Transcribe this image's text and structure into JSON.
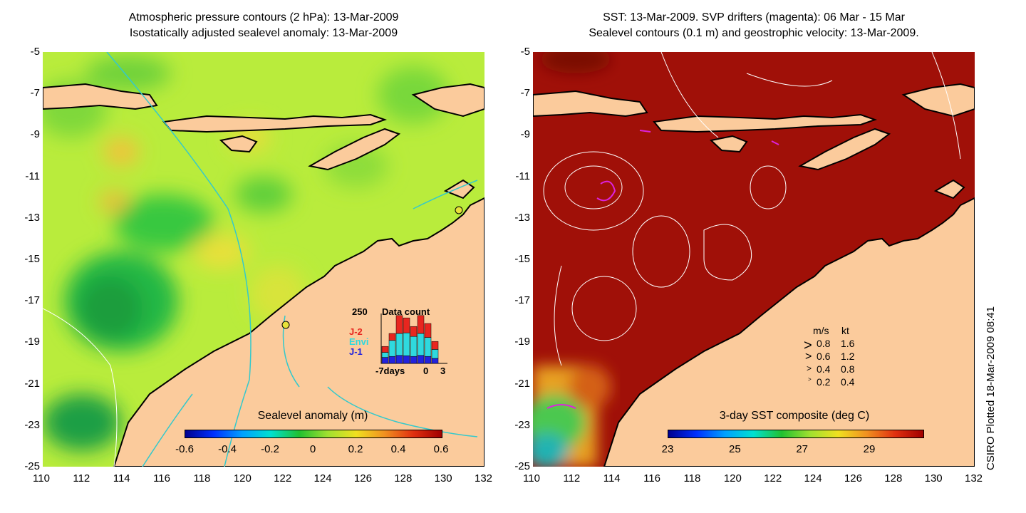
{
  "left_panel": {
    "title_line1": "Atmospheric pressure contours (2 hPa): 13-Mar-2009",
    "title_line2": "Isostatically adjusted sealevel anomaly: 13-Mar-2009",
    "colorbar_title": "Sealevel anomaly (m)",
    "colorbar_ticks": [
      "-0.6",
      "-0.4",
      "-0.2",
      "0",
      "0.2",
      "0.4",
      "0.6"
    ],
    "colors": {
      "land": "#fbcb9c",
      "coast": "#000000",
      "isobath": "#33c9cc",
      "pressure": "#ffffff"
    },
    "inset": {
      "ymax_label": "250",
      "title": "Data count",
      "series": [
        {
          "name": "J-2",
          "color": "#e8261f"
        },
        {
          "name": "Envi",
          "color": "#2fd9de"
        },
        {
          "name": "J-1",
          "color": "#2222dd"
        }
      ],
      "xtick_left": "-7days",
      "xtick_mid": "0",
      "xtick_right": "3",
      "bars": [
        {
          "j1": 30,
          "envi": 25,
          "j2": 30
        },
        {
          "j1": 35,
          "envi": 80,
          "j2": 35
        },
        {
          "j1": 40,
          "envi": 110,
          "j2": 90
        },
        {
          "j1": 38,
          "envi": 115,
          "j2": 75
        },
        {
          "j1": 35,
          "envi": 100,
          "j2": 50
        },
        {
          "j1": 40,
          "envi": 110,
          "j2": 90
        },
        {
          "j1": 35,
          "envi": 95,
          "j2": 70
        },
        {
          "j1": 25,
          "envi": 45,
          "j2": 40
        }
      ]
    }
  },
  "right_panel": {
    "title_line1": "SST: 13-Mar-2009. SVP drifters (magenta): 06 Mar - 15 Mar",
    "title_line2": "Sealevel contours (0.1 m) and geostrophic velocity: 13-Mar-2009.",
    "colorbar_title": "3-day SST composite (deg C)",
    "colorbar_ticks": [
      "23",
      "25",
      "27",
      "29"
    ],
    "colors": {
      "land": "#fbcb9c",
      "sst_warm": "#a01008",
      "contour": "#ffffff",
      "drifter": "#dd22dd"
    },
    "velocity_legend": {
      "header_ms": "m/s",
      "header_kt": "kt",
      "rows": [
        {
          "ms": "0.8",
          "kt": "1.6"
        },
        {
          "ms": "0.6",
          "kt": "1.2"
        },
        {
          "ms": "0.4",
          "kt": "0.8"
        },
        {
          "ms": "0.2",
          "kt": "0.4"
        }
      ]
    }
  },
  "axes": {
    "x_ticks": [
      "110",
      "112",
      "114",
      "116",
      "118",
      "120",
      "122",
      "124",
      "126",
      "128",
      "130",
      "132"
    ],
    "y_ticks": [
      "-5",
      "-7",
      "-9",
      "-11",
      "-13",
      "-15",
      "-17",
      "-19",
      "-21",
      "-23",
      "-25"
    ],
    "lon_range": [
      110,
      132
    ],
    "lat_range": [
      -25,
      -5
    ]
  },
  "credit": "CSIRO Plotted 18-Mar-2009 08:41"
}
